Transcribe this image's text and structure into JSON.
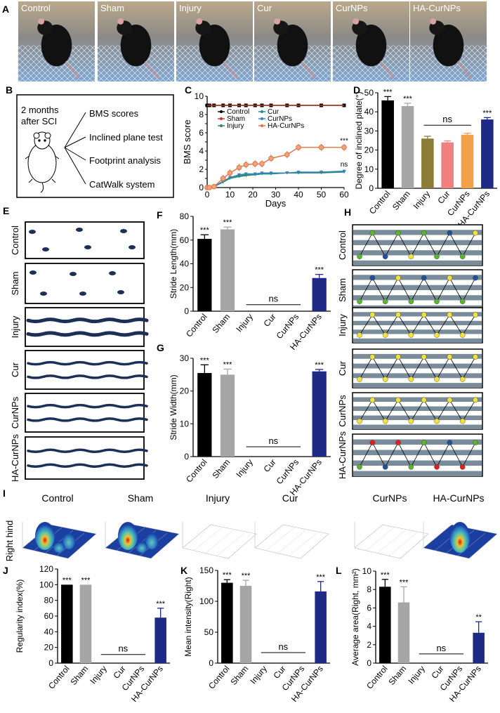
{
  "figure": {
    "panel_labels": [
      "A",
      "B",
      "C",
      "D",
      "E",
      "F",
      "G",
      "H",
      "I",
      "J",
      "K",
      "L"
    ],
    "groups": [
      "Control",
      "Sham",
      "Injury",
      "Cur",
      "CurNPs",
      "HA-CurNPs"
    ],
    "colors": {
      "control": "#000000",
      "sham": "#a6a6a6",
      "injury": "#8b7d38",
      "cur": "#f08080",
      "curnps": "#f3a04a",
      "ha_curnps": "#1f2a86",
      "bms_black": "#000000",
      "bms_sham": "#c0392b",
      "bms_injury": "#2e8b57",
      "bms_cur": "#1f8f8f",
      "bms_curnps": "#3a7fbf",
      "bms_ha": "#e07040",
      "catwalk_green": "#5cb531",
      "catwalk_blue": "#1f4fa0",
      "catwalk_yellow": "#f2e33a",
      "catwalk_red": "#e02020",
      "stripe": "#7a8b9a"
    }
  },
  "panel_b": {
    "lines": [
      "2 months",
      "after SCI"
    ],
    "tests": [
      "BMS scores",
      "Inclined plane test",
      "Footprint analysis",
      "CatWalk system"
    ]
  },
  "panel_e": {
    "rows": [
      "Control",
      "Sham",
      "Injury",
      "Cur",
      "CurNPs",
      "HA-CurNPs"
    ]
  },
  "panel_h": {
    "rows": [
      "Control",
      "Sham",
      "Injury",
      "Cur",
      "CurNPs",
      "HA-CurNPs"
    ]
  },
  "panel_i": {
    "row_label": "Right hind",
    "titles": [
      "Control",
      "Sham",
      "Injury",
      "Cur",
      "CurNPs",
      "HA-CurNPs"
    ]
  },
  "chart_data": [
    {
      "id": "C",
      "type": "line",
      "xlabel": "Days",
      "ylabel": "BMS score",
      "xlim": [
        0,
        60
      ],
      "ylim": [
        0,
        10
      ],
      "xticks": [
        0,
        10,
        20,
        30,
        40,
        50,
        60
      ],
      "yticks": [
        0,
        1,
        2,
        3,
        4,
        5,
        6,
        7,
        8,
        9,
        10
      ],
      "x": [
        0,
        1,
        3,
        7,
        10,
        14,
        17,
        21,
        24,
        28,
        35,
        40,
        50,
        60
      ],
      "series": [
        {
          "name": "Control",
          "values": [
            9,
            9,
            9,
            9,
            9,
            9,
            9,
            9,
            9,
            9,
            9,
            9,
            9,
            9
          ]
        },
        {
          "name": "Sham",
          "values": [
            9,
            9,
            9,
            9,
            9,
            9,
            9,
            9,
            9,
            9,
            9,
            9,
            9,
            9
          ]
        },
        {
          "name": "Injury",
          "values": [
            0,
            0,
            0.1,
            0.6,
            1.0,
            1.2,
            1.3,
            1.4,
            1.5,
            1.5,
            1.6,
            1.6,
            1.6,
            1.7
          ]
        },
        {
          "name": "Cur",
          "values": [
            0,
            0,
            0.1,
            0.6,
            1.1,
            1.3,
            1.4,
            1.4,
            1.5,
            1.5,
            1.6,
            1.6,
            1.7,
            1.7
          ]
        },
        {
          "name": "CurNPs",
          "values": [
            0,
            0,
            0.1,
            0.7,
            1.1,
            1.4,
            1.5,
            1.5,
            1.6,
            1.6,
            1.6,
            1.7,
            1.7,
            1.8
          ]
        },
        {
          "name": "HA-CurNPs",
          "values": [
            0,
            0,
            0.1,
            1.0,
            1.6,
            2.2,
            2.5,
            2.6,
            2.6,
            3.2,
            3.6,
            4.4,
            4.4,
            4.4
          ]
        }
      ],
      "annotations": [
        "***",
        "ns"
      ]
    },
    {
      "id": "D",
      "type": "bar",
      "ylabel": "Degree of inclined plate(°)",
      "categories": [
        "Control",
        "Sham",
        "Injury",
        "Cur",
        "CurNPs",
        "HA-CurNPs"
      ],
      "values": [
        46,
        43,
        26,
        24,
        28,
        36
      ],
      "errors": [
        2,
        1.5,
        1.2,
        0.8,
        0.8,
        1
      ],
      "ylim": [
        0,
        50
      ],
      "yticks": [
        0,
        10,
        20,
        30,
        40,
        50
      ],
      "sig": [
        "***",
        "***",
        "",
        "",
        "",
        "***"
      ],
      "ns_label": "ns"
    },
    {
      "id": "F",
      "type": "bar",
      "ylabel": "Stride Length(mm)",
      "categories": [
        "Control",
        "Sham",
        "Injury",
        "Cur",
        "CurNPs",
        "HA-CurNPs"
      ],
      "values": [
        61,
        69,
        0,
        0,
        0,
        28
      ],
      "errors": [
        3.5,
        2,
        0,
        0,
        0,
        3
      ],
      "ylim": [
        0,
        80
      ],
      "yticks": [
        0,
        20,
        40,
        60,
        80
      ],
      "sig": [
        "***",
        "***",
        "",
        "",
        "",
        "***"
      ],
      "ns_label": "ns"
    },
    {
      "id": "G",
      "type": "bar",
      "ylabel": "Stride Width(mm)",
      "categories": [
        "Control",
        "Sham",
        "Injury",
        "Cur",
        "CurNPs",
        "HA-CurNPs"
      ],
      "values": [
        25.5,
        25,
        0,
        0,
        0,
        26
      ],
      "errors": [
        2.5,
        1.7,
        0,
        0,
        0,
        0.6
      ],
      "ylim": [
        0,
        30
      ],
      "yticks": [
        0,
        10,
        20,
        30
      ],
      "sig": [
        "***",
        "***",
        "",
        "",
        "",
        "***"
      ],
      "ns_label": "ns"
    },
    {
      "id": "J",
      "type": "bar",
      "ylabel": "Regularity index(%)",
      "categories": [
        "Control",
        "Sham",
        "Injury",
        "Cur",
        "CurNPs",
        "HA-CurNPs"
      ],
      "values": [
        100,
        100,
        0,
        0,
        0,
        58
      ],
      "errors": [
        0,
        0,
        0,
        0,
        0,
        12
      ],
      "ylim": [
        0,
        120
      ],
      "yticks": [
        0,
        20,
        40,
        60,
        80,
        100,
        120
      ],
      "sig": [
        "***",
        "***",
        "",
        "",
        "",
        "***"
      ],
      "ns_label": "ns"
    },
    {
      "id": "K",
      "type": "bar",
      "ylabel": "Mean intensity(Right)",
      "categories": [
        "Control",
        "Sham",
        "Injury",
        "Cur",
        "CurNPs",
        "HA-CurNPs"
      ],
      "values": [
        130,
        125,
        0,
        0,
        0,
        116
      ],
      "errors": [
        5,
        9,
        0,
        0,
        0,
        16
      ],
      "ylim": [
        0,
        150
      ],
      "yticks": [
        0,
        50,
        100,
        150
      ],
      "sig": [
        "***",
        "***",
        "",
        "",
        "",
        "***"
      ],
      "ns_label": "ns"
    },
    {
      "id": "L",
      "type": "bar",
      "ylabel": "Average area(Right, mm²)",
      "categories": [
        "Control",
        "Sham",
        "Injury",
        "Cur",
        "CurNPs",
        "HA-CurNPs"
      ],
      "values": [
        8.3,
        6.6,
        0,
        0,
        0,
        3.3
      ],
      "errors": [
        0.8,
        1.7,
        0,
        0,
        0,
        1.2
      ],
      "ylim": [
        0,
        10
      ],
      "yticks": [
        0,
        2,
        4,
        6,
        8,
        10
      ],
      "sig": [
        "***",
        "***",
        "",
        "",
        "",
        "**"
      ],
      "ns_label": "ns"
    }
  ]
}
